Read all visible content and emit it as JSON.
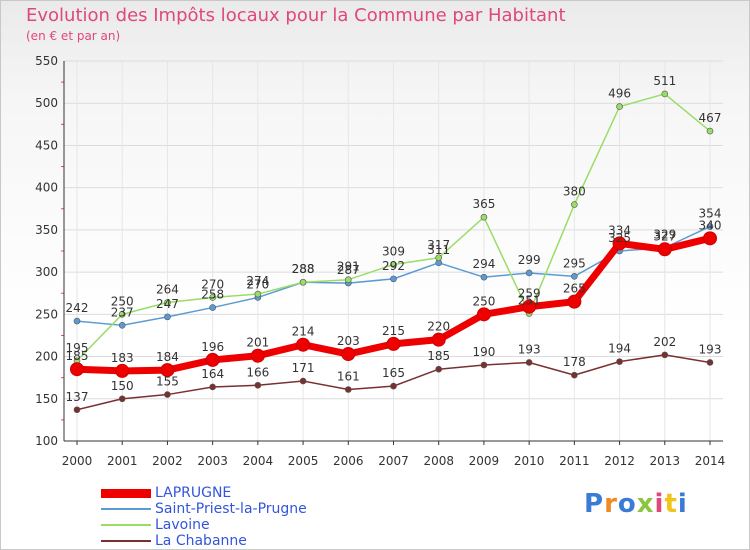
{
  "title": "Evolution des Impôts locaux pour la Commune par Habitant",
  "subtitle": "(en € et par an)",
  "brand": "Proxiti",
  "chart_data": {
    "type": "line",
    "title": "Evolution des Impôts locaux pour la Commune par Habitant",
    "subtitle": "(en € et par an)",
    "xlabel": "",
    "ylabel": "",
    "x": [
      "2000",
      "2001",
      "2002",
      "2003",
      "2004",
      "2005",
      "2006",
      "2007",
      "2008",
      "2009",
      "2010",
      "2011",
      "2012",
      "2013",
      "2014"
    ],
    "ylim": [
      100,
      550
    ],
    "yticks": [
      100,
      150,
      200,
      250,
      300,
      350,
      400,
      450,
      500,
      550
    ],
    "grid": true,
    "legend_position": "bottom-left",
    "series": [
      {
        "name": "LAPRUGNE",
        "color": "#ee0000",
        "values": [
          185,
          183,
          184,
          196,
          201,
          214,
          203,
          215,
          220,
          250,
          259,
          265,
          334,
          327,
          340
        ]
      },
      {
        "name": "Saint-Priest-la-Prugne",
        "color": "#5b9bd5",
        "values": [
          242,
          237,
          247,
          258,
          270,
          288,
          287,
          292,
          311,
          294,
          299,
          295,
          325,
          329,
          354
        ]
      },
      {
        "name": "Lavoine",
        "color": "#99dd66",
        "values": [
          195,
          250,
          264,
          270,
          274,
          288,
          291,
          309,
          317,
          365,
          251,
          380,
          496,
          511,
          467
        ]
      },
      {
        "name": "La Chabanne",
        "color": "#7a3030",
        "values": [
          137,
          150,
          155,
          164,
          166,
          171,
          161,
          165,
          185,
          190,
          193,
          178,
          194,
          202,
          193
        ]
      }
    ]
  }
}
